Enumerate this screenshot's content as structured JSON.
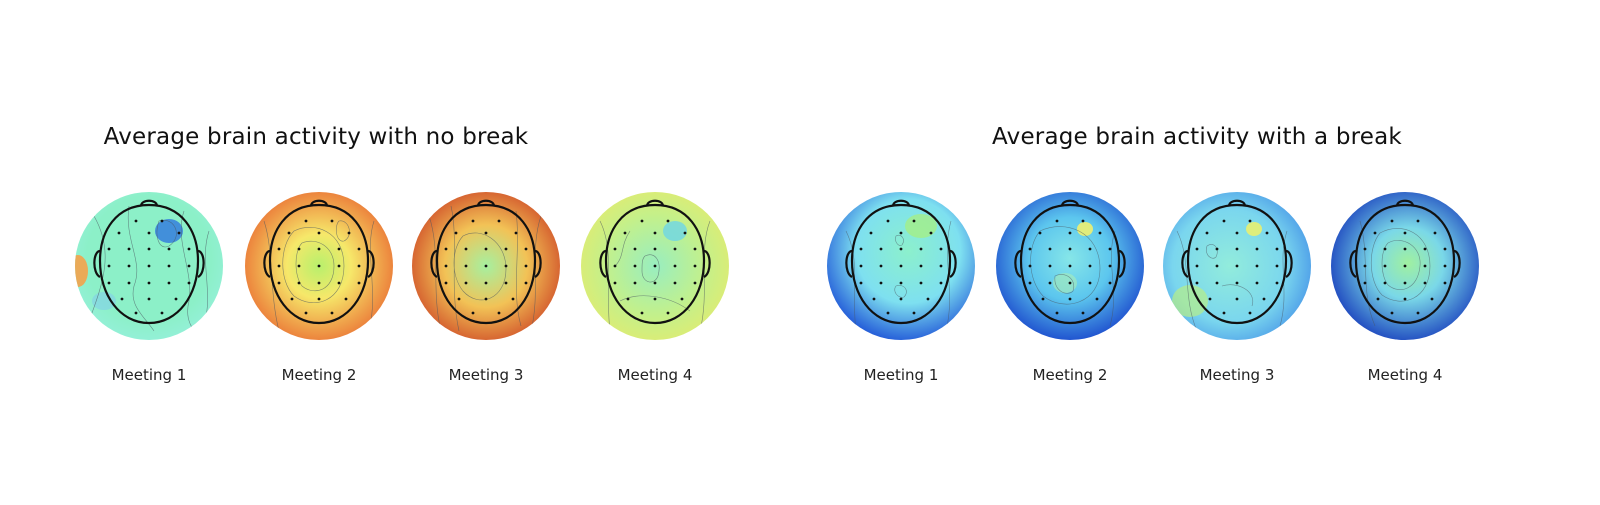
{
  "panels": [
    {
      "title": "Average brain activity with no break",
      "maps": [
        {
          "label": "Meeting 1",
          "center_color": "#8cf0c8",
          "edge_color": "#96f0dc",
          "accent_color": "#2a6fe0"
        },
        {
          "label": "Meeting 2",
          "center_color": "#b8f06c",
          "edge_color": "#e85a2a",
          "accent_color": "#f6e86a"
        },
        {
          "label": "Meeting 3",
          "center_color": "#a6f0a0",
          "edge_color": "#c8341e",
          "accent_color": "#f2c256"
        },
        {
          "label": "Meeting 4",
          "center_color": "#98eec0",
          "edge_color": "#e8ea6a",
          "accent_color": "#6ed6e6"
        }
      ]
    },
    {
      "title": "Average brain activity with a break",
      "maps": [
        {
          "label": "Meeting 1",
          "center_color": "#8cf0cc",
          "edge_color": "#1c50d6",
          "accent_color": "#a8f07a"
        },
        {
          "label": "Meeting 2",
          "center_color": "#86e6e8",
          "edge_color": "#1238c8",
          "accent_color": "#eef070"
        },
        {
          "label": "Meeting 3",
          "center_color": "#92ecdc",
          "edge_color": "#3e8ae6",
          "accent_color": "#e8f070"
        },
        {
          "label": "Meeting 4",
          "center_color": "#a0f0a0",
          "edge_color": "#0e2eb8",
          "accent_color": "#7ad8e8"
        }
      ]
    }
  ]
}
